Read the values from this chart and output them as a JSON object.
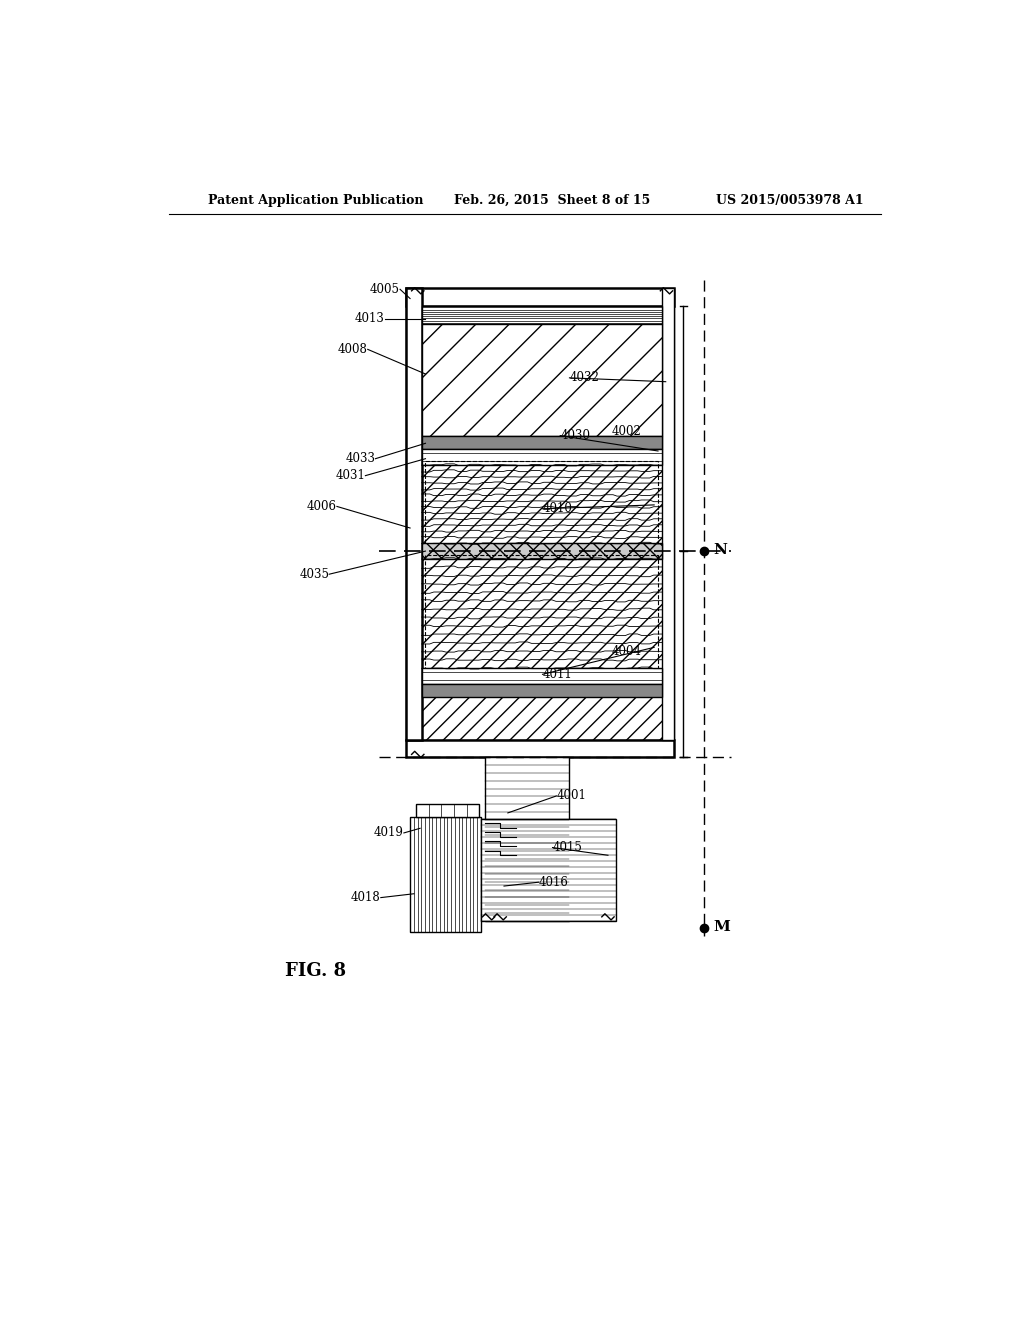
{
  "bg_color": "#ffffff",
  "header_left": "Patent Application Publication",
  "header_mid": "Feb. 26, 2015  Sheet 8 of 15",
  "header_right": "US 2015/0053978 A1",
  "figure_label": "FIG. 8",
  "point_N_label": "N",
  "point_M_label": "M"
}
